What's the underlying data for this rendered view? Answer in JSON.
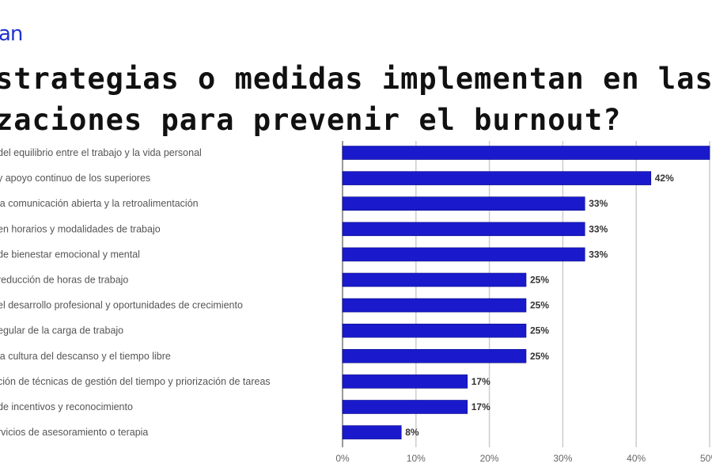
{
  "logo_text": "an",
  "title_lines": [
    "strategias o medidas implementan en las",
    "zaciones para prevenir el burnout?"
  ],
  "chart_data": {
    "type": "bar",
    "orientation": "horizontal",
    "title": "strategias o medidas implementan en las zaciones para prevenir el burnout?",
    "categories": [
      "del equilibrio entre el trabajo y la vida personal",
      "y apoyo continuo de los superiores",
      "la comunicación abierta y la retroalimentación",
      "en horarios y modalidades de trabajo",
      "de bienestar emocional y mental",
      "reducción de horas de trabajo",
      "el desarrollo profesional y oportunidades de crecimiento",
      "egular de la carga de trabajo",
      "la cultura del descanso y el tiempo libre",
      "ción de técnicas de gestión del tiempo y priorización de tareas",
      "de incentivos y reconocimiento",
      "rvicios de asesoramiento o terapia"
    ],
    "values": [
      50,
      42,
      33,
      33,
      33,
      25,
      25,
      25,
      25,
      17,
      17,
      8
    ],
    "data_labels": [
      "",
      "42%",
      "33%",
      "33%",
      "33%",
      "25%",
      "25%",
      "25%",
      "25%",
      "17%",
      "17%",
      "8%"
    ],
    "xlim": [
      0,
      50
    ],
    "x_ticks": [
      "0%",
      "10%",
      "20%",
      "30%",
      "40%",
      "50%"
    ],
    "grid": true,
    "bar_color": "#1a1acc"
  }
}
